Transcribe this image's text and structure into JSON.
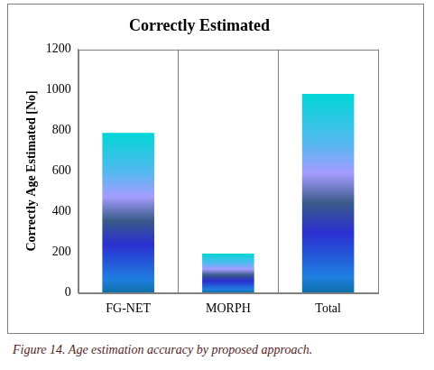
{
  "chart_data": {
    "type": "bar",
    "title": "Correctly Estimated",
    "y_label": "Correctly Age Estimated [No]",
    "categories": [
      "FG-NET",
      "MORPH",
      "Total"
    ],
    "values": [
      788,
      192,
      980
    ],
    "color": "#1e7fe0",
    "ylim": [
      0,
      1200
    ],
    "yticks": [
      0,
      200,
      400,
      600,
      800,
      1000,
      1200
    ],
    "grid": false,
    "caption": "Figure 14. Age estimation accuracy by proposed approach."
  }
}
